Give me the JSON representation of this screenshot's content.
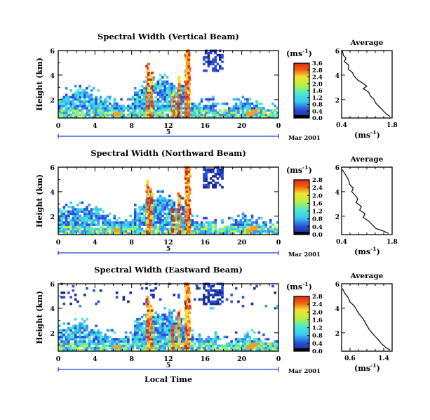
{
  "chart_data": [
    {
      "type": "heatmap",
      "title": "Spectral Width (Vertical Beam)",
      "ylabel": "Height (km)",
      "xlim": [
        0,
        24
      ],
      "ylim": [
        0.5,
        6
      ],
      "x_ticks": [
        "0",
        "4",
        "8",
        "12",
        "16",
        "20",
        "0"
      ],
      "y_ticks": [
        "2",
        "4",
        "6"
      ],
      "date_day": "5",
      "date_label": "Mar 2001",
      "colorbar": {
        "unit": "(ms",
        "unit_sup": "-1",
        "ticks": [
          "0.0",
          "0.4",
          "0.8",
          "1.2",
          "1.6",
          "2.0",
          "2.4",
          "2.8",
          "3.6"
        ]
      },
      "average_profile": {
        "title": "Average",
        "xlabel": "(ms",
        "xlabel_sup": "-1",
        "x_ticks": [
          "0.4",
          "1.8"
        ],
        "xlim": [
          0.4,
          1.8
        ],
        "y_ticks": [
          "2",
          "4",
          "6"
        ],
        "ylim": [
          0.5,
          6
        ],
        "points": [
          [
            0.42,
            6.0
          ],
          [
            0.45,
            5.6
          ],
          [
            0.52,
            5.4
          ],
          [
            0.48,
            5.1
          ],
          [
            0.6,
            4.8
          ],
          [
            0.58,
            4.5
          ],
          [
            0.7,
            4.2
          ],
          [
            0.75,
            3.9
          ],
          [
            0.85,
            3.6
          ],
          [
            0.95,
            3.4
          ],
          [
            1.1,
            3.1
          ],
          [
            1.0,
            2.9
          ],
          [
            1.15,
            2.6
          ],
          [
            1.2,
            2.3
          ],
          [
            1.3,
            2.0
          ],
          [
            1.35,
            1.7
          ],
          [
            1.45,
            1.4
          ],
          [
            1.55,
            1.1
          ],
          [
            1.65,
            0.8
          ],
          [
            1.75,
            0.6
          ]
        ]
      }
    },
    {
      "type": "heatmap",
      "title": "Spectral Width (Northward Beam)",
      "ylabel": "Height (km)",
      "xlim": [
        0,
        24
      ],
      "ylim": [
        0.5,
        6
      ],
      "x_ticks": [
        "0",
        "4",
        "8",
        "12",
        "16",
        "20",
        "0"
      ],
      "y_ticks": [
        "2",
        "4",
        "6"
      ],
      "date_day": "5",
      "date_label": "Mar 2001",
      "colorbar": {
        "unit": "(ms",
        "unit_sup": "-1",
        "ticks": [
          "0.0",
          "0.4",
          "0.8",
          "1.2",
          "1.6",
          "2.0",
          "2.4",
          "2.8"
        ]
      },
      "average_profile": {
        "title": "Average",
        "xlabel": "(ms",
        "xlabel_sup": "-1",
        "x_ticks": [
          "0.4",
          "1.8"
        ],
        "xlim": [
          0.4,
          1.8
        ],
        "y_ticks": [
          "2",
          "4",
          "6"
        ],
        "ylim": [
          0.5,
          6
        ],
        "points": [
          [
            0.42,
            5.8
          ],
          [
            0.48,
            5.5
          ],
          [
            0.55,
            5.2
          ],
          [
            0.6,
            4.9
          ],
          [
            0.62,
            4.6
          ],
          [
            0.72,
            4.3
          ],
          [
            0.68,
            4.0
          ],
          [
            0.78,
            3.7
          ],
          [
            0.85,
            3.4
          ],
          [
            0.8,
            3.1
          ],
          [
            0.95,
            2.8
          ],
          [
            0.9,
            2.5
          ],
          [
            1.05,
            2.2
          ],
          [
            1.0,
            1.9
          ],
          [
            1.15,
            1.6
          ],
          [
            1.25,
            1.3
          ],
          [
            1.35,
            1.0
          ],
          [
            1.55,
            0.8
          ],
          [
            1.7,
            0.6
          ]
        ]
      }
    },
    {
      "type": "heatmap",
      "title": "Spectral Width (Eastward Beam)",
      "ylabel": "Height (km)",
      "xlabel": "Local Time",
      "xlim": [
        0,
        24
      ],
      "ylim": [
        0.5,
        6
      ],
      "x_ticks": [
        "0",
        "4",
        "8",
        "12",
        "16",
        "20",
        "0"
      ],
      "y_ticks": [
        "2",
        "4",
        "6"
      ],
      "date_day": "5",
      "date_label": "Mar 2001",
      "colorbar": {
        "unit": "(ms",
        "unit_sup": "-1",
        "ticks": [
          "0.0",
          "0.4",
          "0.8",
          "1.2",
          "1.6",
          "2.0",
          "2.4",
          "2.8"
        ]
      },
      "average_profile": {
        "title": "Average",
        "xlabel": "(ms",
        "xlabel_sup": "-1",
        "x_ticks": [
          "0.6",
          "1.4"
        ],
        "xlim": [
          0.4,
          1.6
        ],
        "y_ticks": [
          "2",
          "4",
          "6"
        ],
        "ylim": [
          0.5,
          6
        ],
        "points": [
          [
            0.42,
            5.6
          ],
          [
            0.48,
            5.2
          ],
          [
            0.55,
            4.9
          ],
          [
            0.6,
            4.5
          ],
          [
            0.7,
            4.2
          ],
          [
            0.75,
            3.9
          ],
          [
            0.82,
            3.5
          ],
          [
            0.9,
            3.2
          ],
          [
            0.95,
            2.9
          ],
          [
            1.0,
            2.6
          ],
          [
            1.05,
            2.3
          ],
          [
            1.12,
            2.0
          ],
          [
            1.2,
            1.7
          ],
          [
            1.28,
            1.4
          ],
          [
            1.35,
            1.1
          ],
          [
            1.45,
            0.8
          ],
          [
            1.55,
            0.6
          ]
        ]
      }
    }
  ],
  "colors": {
    "colormap": [
      "#000000",
      "#1a2a8f",
      "#2a4fd8",
      "#3b8ff0",
      "#38c8f2",
      "#4de8d0",
      "#7cf28a",
      "#c8f040",
      "#f5e030",
      "#f5a020",
      "#f06010",
      "#e02a10"
    ],
    "date_bar": "#2a3ad8"
  }
}
